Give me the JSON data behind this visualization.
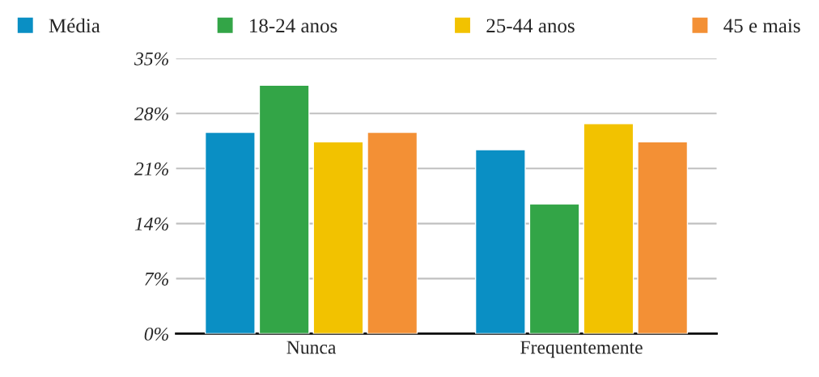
{
  "chart_data": {
    "type": "bar",
    "categories": [
      "Nunca",
      "Frequentemente"
    ],
    "series": [
      {
        "name": "Média",
        "color": "#0a8fc4",
        "values": [
          25.6,
          23.4
        ]
      },
      {
        "name": "18-24 anos",
        "color": "#33a547",
        "values": [
          31.6,
          16.5
        ]
      },
      {
        "name": "25-44 anos",
        "color": "#f2c200",
        "values": [
          24.4,
          26.7
        ]
      },
      {
        "name": "45 e mais",
        "color": "#f39035",
        "values": [
          25.6,
          24.4
        ]
      }
    ],
    "ylim": [
      0,
      35
    ],
    "yticks": [
      {
        "value": 0,
        "label": "0%"
      },
      {
        "value": 7,
        "label": "7%"
      },
      {
        "value": 14,
        "label": "14%"
      },
      {
        "value": 21,
        "label": "21%"
      },
      {
        "value": 28,
        "label": "28%"
      },
      {
        "value": 35,
        "label": "35%"
      }
    ],
    "grid": "y",
    "legend": "top"
  }
}
